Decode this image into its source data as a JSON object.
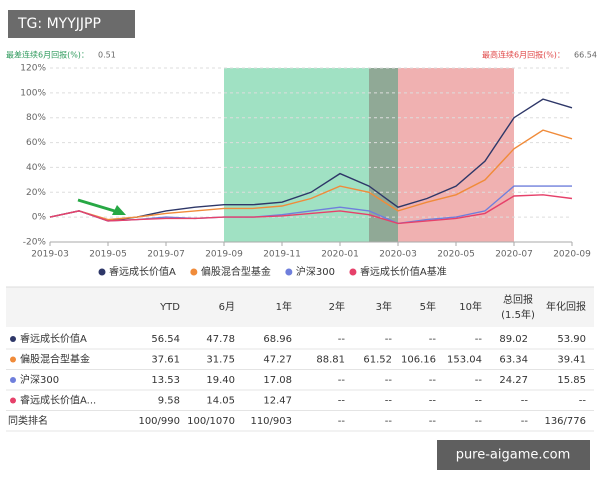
{
  "badge": "TG: MYYJJPP",
  "watermark": "pure-aigame.com",
  "worst": {
    "label": "最差连续6月回报(%)：",
    "value": 0.51
  },
  "best": {
    "label": "最高连续6月回报(%)：",
    "value": 66.54
  },
  "chart_data": {
    "type": "line",
    "x": [
      "2019-03",
      "2019-04",
      "2019-05",
      "2019-06",
      "2019-07",
      "2019-08",
      "2019-09",
      "2019-10",
      "2019-11",
      "2019-12",
      "2020-01",
      "2020-02",
      "2020-03",
      "2020-04",
      "2020-05",
      "2020-06",
      "2020-07",
      "2020-08",
      "2020-09"
    ],
    "xticks": [
      "2019-03",
      "2019-05",
      "2019-07",
      "2019-09",
      "2019-11",
      "2020-01",
      "2020-03",
      "2020-05",
      "2020-07",
      "2020-09"
    ],
    "ylim": [
      -20,
      120
    ],
    "yticks": [
      {
        "value": -20,
        "label": "-20%"
      },
      {
        "value": 0,
        "label": "0%"
      },
      {
        "value": 20,
        "label": "20%"
      },
      {
        "value": 40,
        "label": "40%"
      },
      {
        "value": 60,
        "label": "60%"
      },
      {
        "value": 80,
        "label": "80%"
      },
      {
        "value": 100,
        "label": "100%"
      },
      {
        "value": 120,
        "label": "120%"
      }
    ],
    "grid": true,
    "highlights": [
      {
        "start": "2019-09",
        "end": "2020-02",
        "color": "#8fdcb8"
      },
      {
        "start": "2020-02",
        "end": "2020-03",
        "color": "#7d9a84"
      },
      {
        "start": "2020-03",
        "end": "2020-07",
        "color": "#eda3a3"
      }
    ],
    "series": [
      {
        "name": "睿远成长价值A",
        "color": "#2e3768",
        "values": [
          0,
          5,
          -3,
          0,
          5,
          8,
          10,
          10,
          12,
          20,
          35,
          25,
          8,
          15,
          25,
          45,
          80,
          95,
          88
        ]
      },
      {
        "name": "偏股混合型基金",
        "color": "#f08b3a",
        "values": [
          0,
          5,
          -2,
          0,
          3,
          5,
          7,
          7,
          9,
          15,
          25,
          20,
          5,
          12,
          18,
          30,
          55,
          70,
          63
        ]
      },
      {
        "name": "沪深300",
        "color": "#6f7fdc",
        "values": [
          0,
          5,
          -3,
          -2,
          0,
          -1,
          0,
          0,
          2,
          5,
          8,
          5,
          -5,
          -2,
          0,
          5,
          25,
          25,
          25
        ]
      },
      {
        "name": "睿远成长价值A基准",
        "color": "#e6416a",
        "values": [
          0,
          5,
          -3,
          -2,
          -1,
          -1,
          0,
          0,
          1,
          3,
          5,
          2,
          -5,
          -3,
          -1,
          3,
          17,
          18,
          15
        ]
      }
    ]
  },
  "table": {
    "header": [
      "YTD",
      "6月",
      "1年",
      "2年",
      "3年",
      "5年",
      "10年",
      [
        "总回报",
        "(1.5年)"
      ],
      "年化回报"
    ],
    "rows": [
      [
        "睿远成长价值A",
        "56.54",
        "47.78",
        "68.96",
        "--",
        "--",
        "--",
        "--",
        "89.02",
        "53.90"
      ],
      [
        "偏股混合型基金",
        "37.61",
        "31.75",
        "47.27",
        "88.81",
        "61.52",
        "106.16",
        "153.04",
        "63.34",
        "39.41"
      ],
      [
        "沪深300",
        "13.53",
        "19.40",
        "17.08",
        "--",
        "--",
        "--",
        "--",
        "24.27",
        "15.85"
      ],
      [
        "睿远成长价值A...",
        "9.58",
        "14.05",
        "12.47",
        "--",
        "--",
        "--",
        "--",
        "--",
        "--"
      ],
      [
        "同类排名",
        "100/990",
        "100/1070",
        "110/903",
        "--",
        "--",
        "--",
        "--",
        "--",
        "136/776"
      ]
    ]
  }
}
